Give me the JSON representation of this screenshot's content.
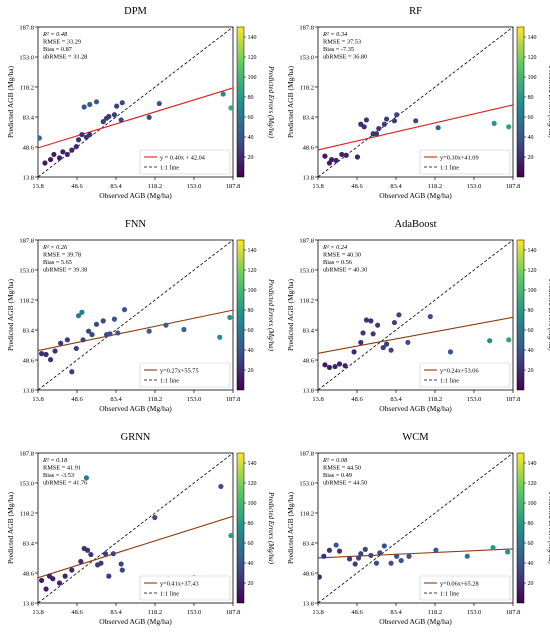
{
  "figure": {
    "colorbar_label": "Predicted Errors (Mg/ha)",
    "colorbar_ticks": [
      20,
      40,
      60,
      80,
      100,
      120,
      140
    ],
    "colormap": [
      "#440154",
      "#3b528b",
      "#21918c",
      "#5ec962",
      "#fde725"
    ],
    "identity_legend_label": "1:1 line"
  },
  "chart_data": [
    {
      "type": "scatter",
      "title": "DPM",
      "xlabel": "Observed AGB (Mg/ha)",
      "ylabel": "Predicted AGB (Mg/ha)",
      "xlim": [
        13.8,
        187.8
      ],
      "ylim": [
        13.8,
        187.8
      ],
      "ticks": [
        "13.8",
        "48.6",
        "83.4",
        "118.2",
        "153.0",
        "187.8"
      ],
      "stats": [
        "R² = 0.48",
        "RMSE = 33.29",
        "Bias = 0.87",
        "ubRMSE = 33.28"
      ],
      "fit": {
        "label": "y = 0.40x + 42.04",
        "slope": 0.4,
        "intercept": 42.04,
        "color": "#e3191b"
      },
      "points": [
        {
          "x": 20,
          "y": 30,
          "e": 10
        },
        {
          "x": 25,
          "y": 34,
          "e": 10
        },
        {
          "x": 28,
          "y": 40,
          "e": 12
        },
        {
          "x": 33,
          "y": 36,
          "e": 12
        },
        {
          "x": 36,
          "y": 43,
          "e": 14
        },
        {
          "x": 40,
          "y": 40,
          "e": 16
        },
        {
          "x": 44,
          "y": 45,
          "e": 16
        },
        {
          "x": 48,
          "y": 49,
          "e": 18
        },
        {
          "x": 50,
          "y": 57,
          "e": 20
        },
        {
          "x": 53,
          "y": 63,
          "e": 20
        },
        {
          "x": 57,
          "y": 60,
          "e": 22
        },
        {
          "x": 60,
          "y": 63,
          "e": 22
        },
        {
          "x": 55,
          "y": 95,
          "e": 40
        },
        {
          "x": 60,
          "y": 98,
          "e": 42
        },
        {
          "x": 66,
          "y": 101,
          "e": 44
        },
        {
          "x": 72,
          "y": 78,
          "e": 26
        },
        {
          "x": 75,
          "y": 82,
          "e": 26
        },
        {
          "x": 77,
          "y": 84,
          "e": 28
        },
        {
          "x": 82,
          "y": 86,
          "e": 28
        },
        {
          "x": 84,
          "y": 96,
          "e": 30
        },
        {
          "x": 88,
          "y": 80,
          "e": 30
        },
        {
          "x": 89,
          "y": 100,
          "e": 32
        },
        {
          "x": 113,
          "y": 83,
          "e": 34
        },
        {
          "x": 122,
          "y": 99,
          "e": 36
        },
        {
          "x": 15,
          "y": 59,
          "e": 55
        },
        {
          "x": 179,
          "y": 110,
          "e": 70
        },
        {
          "x": 186,
          "y": 94,
          "e": 92
        }
      ]
    },
    {
      "type": "scatter",
      "title": "RF",
      "xlabel": "Observed AGB (Mg/ha)",
      "ylabel": "Predicted AGB (Mg/ha)",
      "xlim": [
        13.8,
        187.8
      ],
      "ylim": [
        13.8,
        187.8
      ],
      "ticks": [
        "13.8",
        "48.6",
        "83.4",
        "118.2",
        "153.0",
        "187.8"
      ],
      "stats": [
        "R² = 0.34",
        "RMSE = 37.53",
        "Bias = -7.35",
        "ubRMSE = 36.80"
      ],
      "fit": {
        "label": "y=0.30x+41.09",
        "slope": 0.3,
        "intercept": 41.09,
        "color": "#e3191b"
      },
      "points": [
        {
          "x": 20,
          "y": 38,
          "e": 12
        },
        {
          "x": 24,
          "y": 30,
          "e": 12
        },
        {
          "x": 26,
          "y": 34,
          "e": 14
        },
        {
          "x": 30,
          "y": 33,
          "e": 14
        },
        {
          "x": 35,
          "y": 40,
          "e": 16
        },
        {
          "x": 39,
          "y": 39,
          "e": 16
        },
        {
          "x": 49,
          "y": 37,
          "e": 18
        },
        {
          "x": 52,
          "y": 75,
          "e": 20
        },
        {
          "x": 55,
          "y": 72,
          "e": 22
        },
        {
          "x": 57,
          "y": 80,
          "e": 22
        },
        {
          "x": 63,
          "y": 64,
          "e": 24
        },
        {
          "x": 66,
          "y": 64,
          "e": 24
        },
        {
          "x": 68,
          "y": 70,
          "e": 26
        },
        {
          "x": 73,
          "y": 75,
          "e": 26
        },
        {
          "x": 75,
          "y": 81,
          "e": 28
        },
        {
          "x": 82,
          "y": 79,
          "e": 28
        },
        {
          "x": 84,
          "y": 86,
          "e": 30
        },
        {
          "x": 101,
          "y": 79,
          "e": 32
        },
        {
          "x": 121,
          "y": 71,
          "e": 48
        },
        {
          "x": 171,
          "y": 76,
          "e": 80
        },
        {
          "x": 184,
          "y": 72,
          "e": 86
        }
      ]
    },
    {
      "type": "scatter",
      "title": "FNN",
      "xlabel": "Observed AGB (Mg/ha)",
      "ylabel": "Predicted AGB (Mg/ha)",
      "xlim": [
        13.8,
        187.8
      ],
      "ylim": [
        13.8,
        187.8
      ],
      "ticks": [
        "13.8",
        "48.6",
        "83.4",
        "118.2",
        "153.0",
        "187.8"
      ],
      "stats": [
        "R² = 0.26",
        "RMSE = 39.78",
        "Bias = 5.65",
        "ubRMSE = 39.38"
      ],
      "fit": {
        "label": "y=0.27x+55.75",
        "slope": 0.27,
        "intercept": 55.75,
        "color": "#8b3a0f"
      },
      "points": [
        {
          "x": 17,
          "y": 56,
          "e": 20
        },
        {
          "x": 21,
          "y": 55,
          "e": 20
        },
        {
          "x": 25,
          "y": 49,
          "e": 22
        },
        {
          "x": 29,
          "y": 59,
          "e": 22
        },
        {
          "x": 34,
          "y": 68,
          "e": 24
        },
        {
          "x": 40,
          "y": 72,
          "e": 26
        },
        {
          "x": 44,
          "y": 35,
          "e": 28
        },
        {
          "x": 48,
          "y": 62,
          "e": 28
        },
        {
          "x": 50,
          "y": 100,
          "e": 60
        },
        {
          "x": 53,
          "y": 104,
          "e": 65
        },
        {
          "x": 54,
          "y": 72,
          "e": 30
        },
        {
          "x": 59,
          "y": 82,
          "e": 30
        },
        {
          "x": 62,
          "y": 78,
          "e": 32
        },
        {
          "x": 66,
          "y": 90,
          "e": 32
        },
        {
          "x": 72,
          "y": 94,
          "e": 34
        },
        {
          "x": 75,
          "y": 78,
          "e": 34
        },
        {
          "x": 78,
          "y": 79,
          "e": 36
        },
        {
          "x": 82,
          "y": 96,
          "e": 36
        },
        {
          "x": 85,
          "y": 80,
          "e": 38
        },
        {
          "x": 91,
          "y": 107,
          "e": 40
        },
        {
          "x": 113,
          "y": 82,
          "e": 40
        },
        {
          "x": 128,
          "y": 89,
          "e": 45
        },
        {
          "x": 144,
          "y": 84,
          "e": 48
        },
        {
          "x": 176,
          "y": 75,
          "e": 75
        },
        {
          "x": 185,
          "y": 98,
          "e": 78
        }
      ]
    },
    {
      "type": "scatter",
      "title": "AdaBoost",
      "xlabel": "Observed AGB (Mg/ha)",
      "ylabel": "Predicted AGB (Mg/ha)",
      "xlim": [
        13.8,
        187.8
      ],
      "ylim": [
        13.8,
        187.8
      ],
      "ticks": [
        "13.8",
        "48.6",
        "83.4",
        "118.2",
        "153.0",
        "187.8"
      ],
      "stats": [
        "R² = 0.24",
        "RMSE = 40.30",
        "Bias = 0.56",
        "ubRMSE = 40.30"
      ],
      "fit": {
        "label": "y=0.24x+53.06",
        "slope": 0.24,
        "intercept": 53.06,
        "color": "#8b3a0f"
      },
      "points": [
        {
          "x": 20,
          "y": 43,
          "e": 12
        },
        {
          "x": 24,
          "y": 40,
          "e": 12
        },
        {
          "x": 29,
          "y": 41,
          "e": 14
        },
        {
          "x": 33,
          "y": 44,
          "e": 14
        },
        {
          "x": 38,
          "y": 42,
          "e": 16
        },
        {
          "x": 46,
          "y": 58,
          "e": 18
        },
        {
          "x": 52,
          "y": 69,
          "e": 20
        },
        {
          "x": 54,
          "y": 80,
          "e": 22
        },
        {
          "x": 57,
          "y": 95,
          "e": 24
        },
        {
          "x": 61,
          "y": 94,
          "e": 24
        },
        {
          "x": 63,
          "y": 79,
          "e": 26
        },
        {
          "x": 67,
          "y": 89,
          "e": 26
        },
        {
          "x": 72,
          "y": 63,
          "e": 28
        },
        {
          "x": 75,
          "y": 67,
          "e": 28
        },
        {
          "x": 79,
          "y": 60,
          "e": 30
        },
        {
          "x": 82,
          "y": 92,
          "e": 30
        },
        {
          "x": 86,
          "y": 101,
          "e": 32
        },
        {
          "x": 94,
          "y": 69,
          "e": 34
        },
        {
          "x": 114,
          "y": 99,
          "e": 36
        },
        {
          "x": 132,
          "y": 58,
          "e": 40
        },
        {
          "x": 167,
          "y": 71,
          "e": 70
        },
        {
          "x": 184,
          "y": 72,
          "e": 86
        }
      ]
    },
    {
      "type": "scatter",
      "title": "GRNN",
      "xlabel": "Observed AGB (Mg/ha)",
      "ylabel": "Predicted AGB (Mg/ha)",
      "xlim": [
        13.8,
        187.8
      ],
      "ylim": [
        13.8,
        187.8
      ],
      "ticks": [
        "13.8",
        "48.6",
        "83.4",
        "118.2",
        "153.0",
        "187.8"
      ],
      "stats": [
        "R² = 0.18",
        "RMSE = 41.91",
        "Bias = -3.53",
        "ubRMSE = 41.76"
      ],
      "fit": {
        "label": "y=0.41x+37.43",
        "slope": 0.41,
        "intercept": 37.43,
        "color": "#8b3a0f"
      },
      "points": [
        {
          "x": 17,
          "y": 40,
          "e": 12
        },
        {
          "x": 21,
          "y": 30,
          "e": 12
        },
        {
          "x": 24,
          "y": 45,
          "e": 14
        },
        {
          "x": 27,
          "y": 42,
          "e": 14
        },
        {
          "x": 33,
          "y": 37,
          "e": 16
        },
        {
          "x": 38,
          "y": 45,
          "e": 16
        },
        {
          "x": 44,
          "y": 52,
          "e": 18
        },
        {
          "x": 52,
          "y": 62,
          "e": 20
        },
        {
          "x": 55,
          "y": 77,
          "e": 22
        },
        {
          "x": 58,
          "y": 75,
          "e": 22
        },
        {
          "x": 57,
          "y": 159,
          "e": 60
        },
        {
          "x": 61,
          "y": 70,
          "e": 24
        },
        {
          "x": 67,
          "y": 58,
          "e": 26
        },
        {
          "x": 70,
          "y": 60,
          "e": 26
        },
        {
          "x": 74,
          "y": 71,
          "e": 28
        },
        {
          "x": 77,
          "y": 45,
          "e": 28
        },
        {
          "x": 81,
          "y": 71,
          "e": 30
        },
        {
          "x": 88,
          "y": 59,
          "e": 30
        },
        {
          "x": 89,
          "y": 52,
          "e": 32
        },
        {
          "x": 118,
          "y": 113,
          "e": 34
        },
        {
          "x": 153,
          "y": 43,
          "e": 70
        },
        {
          "x": 177,
          "y": 149,
          "e": 36
        },
        {
          "x": 186,
          "y": 92,
          "e": 82
        }
      ]
    },
    {
      "type": "scatter",
      "title": "WCM",
      "xlabel": "Observed AGB (Mg/ha)",
      "ylabel": "Predicted AGB (Mg/ha)",
      "xlim": [
        13.8,
        187.8
      ],
      "ylim": [
        13.8,
        187.8
      ],
      "ticks": [
        "13.8",
        "48.6",
        "83.4",
        "118.2",
        "153.0",
        "187.8"
      ],
      "stats": [
        "R² = 0.08",
        "RMSE = 44.50",
        "Bias = 0.49",
        "ubRMSE = 44.50"
      ],
      "fit": {
        "label": "y=0.06x+65.28",
        "slope": 0.06,
        "intercept": 65.28,
        "color": "#8b3a0f"
      },
      "points": [
        {
          "x": 15,
          "y": 44,
          "e": 20
        },
        {
          "x": 19,
          "y": 68,
          "e": 22
        },
        {
          "x": 24,
          "y": 75,
          "e": 24
        },
        {
          "x": 30,
          "y": 81,
          "e": 40
        },
        {
          "x": 33,
          "y": 74,
          "e": 26
        },
        {
          "x": 42,
          "y": 65,
          "e": 26
        },
        {
          "x": 47,
          "y": 59,
          "e": 28
        },
        {
          "x": 50,
          "y": 66,
          "e": 30
        },
        {
          "x": 52,
          "y": 71,
          "e": 30
        },
        {
          "x": 56,
          "y": 76,
          "e": 32
        },
        {
          "x": 61,
          "y": 69,
          "e": 32
        },
        {
          "x": 66,
          "y": 60,
          "e": 34
        },
        {
          "x": 69,
          "y": 72,
          "e": 34
        },
        {
          "x": 73,
          "y": 80,
          "e": 36
        },
        {
          "x": 79,
          "y": 60,
          "e": 36
        },
        {
          "x": 84,
          "y": 68,
          "e": 38
        },
        {
          "x": 88,
          "y": 63,
          "e": 38
        },
        {
          "x": 95,
          "y": 68,
          "e": 40
        },
        {
          "x": 119,
          "y": 75,
          "e": 42
        },
        {
          "x": 147,
          "y": 68,
          "e": 60
        },
        {
          "x": 170,
          "y": 78,
          "e": 80
        },
        {
          "x": 183,
          "y": 73,
          "e": 78
        }
      ]
    }
  ]
}
